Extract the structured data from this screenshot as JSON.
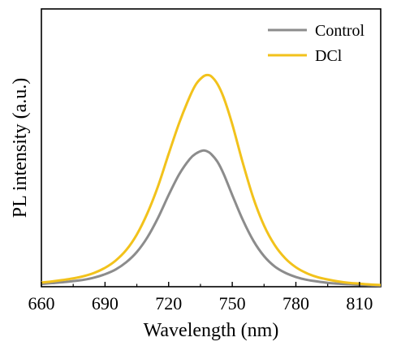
{
  "chart_data": {
    "type": "line",
    "title": "",
    "xlabel": "Wavelength (nm)",
    "ylabel": "PL intensity (a.u.)",
    "xlim": [
      660,
      820
    ],
    "ylim": [
      0,
      1.0
    ],
    "x_ticks": [
      660,
      690,
      720,
      750,
      780,
      810
    ],
    "x_tick_labels": [
      "660",
      "690",
      "720",
      "750",
      "780",
      "810"
    ],
    "y_ticks_shown": false,
    "grid": false,
    "legend": {
      "position": "top-right"
    },
    "x": [
      660,
      665,
      670,
      675,
      680,
      685,
      690,
      695,
      700,
      705,
      710,
      715,
      720,
      725,
      730,
      733,
      736,
      738,
      740,
      743,
      746,
      750,
      755,
      760,
      765,
      770,
      775,
      780,
      785,
      790,
      795,
      800,
      805,
      810,
      815,
      820
    ],
    "series": [
      {
        "name": "Control",
        "color": "#8c8c8c",
        "values": [
          0.01,
          0.013,
          0.016,
          0.02,
          0.025,
          0.033,
          0.045,
          0.062,
          0.088,
          0.125,
          0.178,
          0.248,
          0.33,
          0.405,
          0.46,
          0.48,
          0.49,
          0.488,
          0.478,
          0.45,
          0.405,
          0.33,
          0.24,
          0.165,
          0.11,
          0.073,
          0.05,
          0.035,
          0.025,
          0.019,
          0.014,
          0.011,
          0.009,
          0.007,
          0.005,
          0.004
        ]
      },
      {
        "name": "DCl",
        "color": "#f2c21b",
        "values": [
          0.015,
          0.019,
          0.024,
          0.03,
          0.038,
          0.05,
          0.068,
          0.094,
          0.132,
          0.188,
          0.265,
          0.362,
          0.478,
          0.59,
          0.685,
          0.73,
          0.755,
          0.762,
          0.758,
          0.73,
          0.68,
          0.585,
          0.445,
          0.318,
          0.22,
          0.15,
          0.102,
          0.07,
          0.049,
          0.035,
          0.026,
          0.019,
          0.014,
          0.011,
          0.008,
          0.006
        ]
      }
    ]
  }
}
